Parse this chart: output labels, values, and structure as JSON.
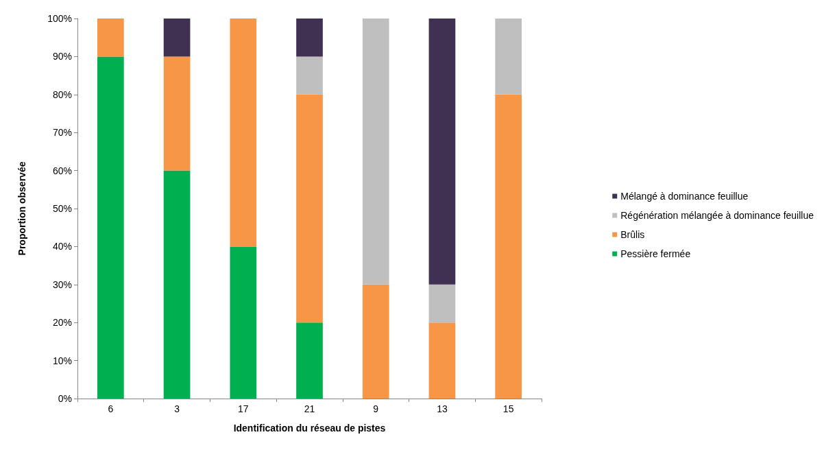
{
  "chart_data": {
    "type": "bar",
    "stacked": true,
    "xlabel": "Identification du réseau de pistes",
    "ylabel": "Proportion observée",
    "categories": [
      "6",
      "3",
      "17",
      "21",
      "9",
      "13",
      "15"
    ],
    "series": [
      {
        "name": "Pessière fermée",
        "color": "#00b050",
        "values": [
          90,
          60,
          40,
          20,
          0,
          0,
          0
        ]
      },
      {
        "name": "Brûlis",
        "color": "#f79646",
        "values": [
          10,
          30,
          60,
          60,
          30,
          20,
          80
        ]
      },
      {
        "name": "Régénération mélangée à dominance feuillue",
        "color": "#bfbfbf",
        "values": [
          0,
          0,
          0,
          10,
          70,
          10,
          20
        ]
      },
      {
        "name": "Mélangé à dominance feuillue",
        "color": "#403152",
        "values": [
          0,
          10,
          0,
          10,
          0,
          70,
          0
        ]
      }
    ],
    "ylim": [
      0,
      100
    ],
    "yticks": [
      {
        "value": 0,
        "label": "0%"
      },
      {
        "value": 10,
        "label": "10%"
      },
      {
        "value": 20,
        "label": "20%"
      },
      {
        "value": 30,
        "label": "30%"
      },
      {
        "value": 40,
        "label": "40%"
      },
      {
        "value": 50,
        "label": "50%"
      },
      {
        "value": 60,
        "label": "60%"
      },
      {
        "value": 70,
        "label": "70%"
      },
      {
        "value": 80,
        "label": "80%"
      },
      {
        "value": 90,
        "label": "90%"
      },
      {
        "value": 100,
        "label": "100%"
      }
    ],
    "grid": false,
    "legend": "right"
  }
}
